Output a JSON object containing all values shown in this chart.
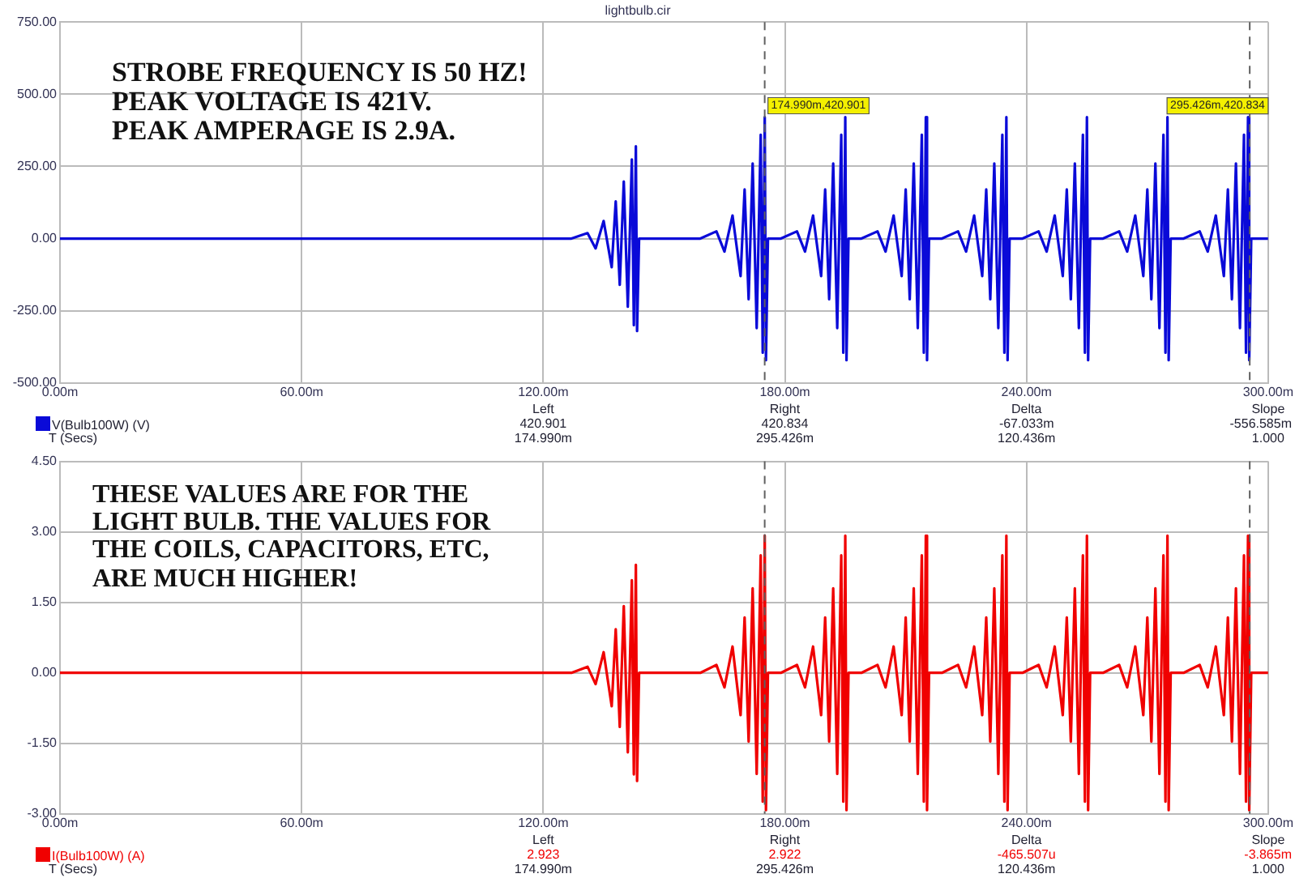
{
  "chart_data": [
    {
      "type": "line",
      "title": "lightbulb.cir",
      "x": [
        0,
        127,
        131,
        133,
        135,
        137,
        138,
        139,
        140,
        141,
        142,
        142.5,
        143,
        143.3,
        143.8,
        159,
        163,
        165,
        167,
        169,
        170,
        171,
        172,
        173,
        174,
        174.5,
        175,
        175.3,
        175.8,
        179,
        183,
        185,
        187,
        189,
        190,
        191,
        192,
        193,
        194,
        194.5,
        195,
        195.3,
        195.8,
        199,
        203,
        205,
        207,
        209,
        210,
        211,
        212,
        213,
        214,
        214.5,
        215,
        215.3,
        215.8,
        219,
        223,
        225,
        227,
        229,
        230,
        231,
        232,
        233,
        234,
        234.5,
        235,
        235.3,
        235.8,
        239,
        243,
        245,
        247,
        249,
        250,
        251,
        252,
        253,
        254,
        254.5,
        255,
        255.3,
        255.8,
        259,
        263,
        265,
        267,
        269,
        270,
        271,
        272,
        273,
        274,
        274.5,
        275,
        275.3,
        275.8,
        279,
        283,
        285,
        287,
        289,
        290,
        291,
        292,
        293,
        294,
        294.5,
        295,
        295.3,
        295.8,
        300
      ],
      "series": [
        {
          "name": "V(Bulb100W) (V)",
          "color": "#0a0ad8",
          "values": [
            0,
            0,
            19,
            -34,
            61,
            -99,
            129,
            -160,
            198,
            -236,
            274,
            -300,
            320,
            -320,
            0,
            0,
            25,
            -45,
            80,
            -130,
            170,
            -210,
            260,
            -310,
            360,
            -395,
            421,
            -421,
            0,
            0,
            25,
            -45,
            80,
            -130,
            170,
            -210,
            260,
            -310,
            360,
            -395,
            421,
            -421,
            0,
            0,
            25,
            -45,
            80,
            -130,
            170,
            -210,
            260,
            -310,
            360,
            -395,
            421,
            -421,
            0,
            0,
            25,
            -45,
            80,
            -130,
            170,
            -210,
            260,
            -310,
            360,
            -395,
            421,
            -421,
            0,
            0,
            25,
            -45,
            80,
            -130,
            170,
            -210,
            260,
            -310,
            360,
            -395,
            421,
            -421,
            0,
            0,
            25,
            -45,
            80,
            -130,
            170,
            -210,
            260,
            -310,
            360,
            -395,
            421,
            -421,
            0,
            0,
            25,
            -45,
            80,
            -130,
            170,
            -210,
            260,
            -310,
            360,
            -395,
            421,
            -421,
            0,
            0
          ]
        }
      ],
      "xlim": [
        0,
        300
      ],
      "xticks": [
        {
          "value": 0,
          "label": "0.00m"
        },
        {
          "value": 60,
          "label": "60.00m"
        },
        {
          "value": 120,
          "label": "120.00m"
        },
        {
          "value": 180,
          "label": "180.00m"
        },
        {
          "value": 240,
          "label": "240.00m"
        },
        {
          "value": 300,
          "label": "300.00m"
        }
      ],
      "ylim": [
        -500,
        750
      ],
      "yticks": [
        {
          "value": -500,
          "label": "-500.00"
        },
        {
          "value": -250,
          "label": "-250.00"
        },
        {
          "value": 0,
          "label": "0.00"
        },
        {
          "value": 250,
          "label": "250.00"
        },
        {
          "value": 500,
          "label": "500.00"
        },
        {
          "value": 750,
          "label": "750.00"
        }
      ],
      "grid": true,
      "legend": "bottom left",
      "marker": "none",
      "line_style": "solid",
      "ref_lines": [
        {
          "axis": "x",
          "value": 174.99,
          "color": "#606060",
          "line_style": "dashed"
        },
        {
          "axis": "x",
          "value": 295.426,
          "color": "#606060",
          "line_style": "dashed"
        }
      ],
      "annotations": [
        "STROBE FREQUENCY IS 50 HZ!\nPEAK VOLTAGE IS 421V.\nPEAK AMPERAGE IS 2.9A.",
        {
          "text": "174.990m,420.901",
          "x": 174.99,
          "y": 420.901
        },
        {
          "text": "295.426m,420.834",
          "x": 295.426,
          "y": 420.834
        },
        "Left",
        "Right",
        "Delta",
        "Slope",
        "420.901",
        "420.834",
        "-67.033m",
        "-556.585m",
        "T (Secs)",
        "174.990m",
        "295.426m",
        "120.436m",
        "1.000"
      ]
    },
    {
      "type": "line",
      "x": [
        0,
        127,
        131,
        133,
        135,
        137,
        138,
        139,
        140,
        141,
        142,
        142.5,
        143,
        143.3,
        143.8,
        159,
        163,
        165,
        167,
        169,
        170,
        171,
        172,
        173,
        174,
        174.5,
        175,
        175.3,
        175.8,
        179,
        183,
        185,
        187,
        189,
        190,
        191,
        192,
        193,
        194,
        194.5,
        195,
        195.3,
        195.8,
        199,
        203,
        205,
        207,
        209,
        210,
        211,
        212,
        213,
        214,
        214.5,
        215,
        215.3,
        215.8,
        219,
        223,
        225,
        227,
        229,
        230,
        231,
        232,
        233,
        234,
        234.5,
        235,
        235.3,
        235.8,
        239,
        243,
        245,
        247,
        249,
        250,
        251,
        252,
        253,
        254,
        254.5,
        255,
        255.3,
        255.8,
        259,
        263,
        265,
        267,
        269,
        270,
        271,
        272,
        273,
        274,
        274.5,
        275,
        275.3,
        275.8,
        279,
        283,
        285,
        287,
        289,
        290,
        291,
        292,
        293,
        294,
        294.5,
        295,
        295.3,
        295.8,
        300
      ],
      "series": [
        {
          "name": "I(Bulb100W) (A)",
          "color": "#f00000",
          "values": [
            0,
            0,
            0.13,
            -0.24,
            0.44,
            -0.71,
            0.93,
            -1.15,
            1.42,
            -1.69,
            1.97,
            -2.16,
            2.3,
            -2.3,
            0,
            0,
            0.17,
            -0.31,
            0.56,
            -0.9,
            1.18,
            -1.46,
            1.8,
            -2.15,
            2.5,
            -2.74,
            2.92,
            -2.92,
            0,
            0,
            0.17,
            -0.31,
            0.56,
            -0.9,
            1.18,
            -1.46,
            1.8,
            -2.15,
            2.5,
            -2.74,
            2.92,
            -2.92,
            0,
            0,
            0.17,
            -0.31,
            0.56,
            -0.9,
            1.18,
            -1.46,
            1.8,
            -2.15,
            2.5,
            -2.74,
            2.92,
            -2.92,
            0,
            0,
            0.17,
            -0.31,
            0.56,
            -0.9,
            1.18,
            -1.46,
            1.8,
            -2.15,
            2.5,
            -2.74,
            2.92,
            -2.92,
            0,
            0,
            0.17,
            -0.31,
            0.56,
            -0.9,
            1.18,
            -1.46,
            1.8,
            -2.15,
            2.5,
            -2.74,
            2.92,
            -2.92,
            0,
            0,
            0.17,
            -0.31,
            0.56,
            -0.9,
            1.18,
            -1.46,
            1.8,
            -2.15,
            2.5,
            -2.74,
            2.92,
            -2.92,
            0,
            0,
            0.17,
            -0.31,
            0.56,
            -0.9,
            1.18,
            -1.46,
            1.8,
            -2.15,
            2.5,
            -2.74,
            2.92,
            -2.92,
            0,
            0
          ]
        }
      ],
      "xlim": [
        0,
        300
      ],
      "xticks": [
        {
          "value": 0,
          "label": "0.00m"
        },
        {
          "value": 60,
          "label": "60.00m"
        },
        {
          "value": 120,
          "label": "120.00m"
        },
        {
          "value": 180,
          "label": "180.00m"
        },
        {
          "value": 240,
          "label": "240.00m"
        },
        {
          "value": 300,
          "label": "300.00m"
        }
      ],
      "ylim": [
        -3,
        4.5
      ],
      "yticks": [
        {
          "value": -3,
          "label": "-3.00"
        },
        {
          "value": -1.5,
          "label": "-1.50"
        },
        {
          "value": 0,
          "label": "0.00"
        },
        {
          "value": 1.5,
          "label": "1.50"
        },
        {
          "value": 3,
          "label": "3.00"
        },
        {
          "value": 4.5,
          "label": "4.50"
        }
      ],
      "grid": true,
      "legend": "bottom left",
      "marker": "none",
      "line_style": "solid",
      "ref_lines": [
        {
          "axis": "x",
          "value": 174.99,
          "color": "#606060",
          "line_style": "dashed"
        },
        {
          "axis": "x",
          "value": 295.426,
          "color": "#606060",
          "line_style": "dashed"
        }
      ],
      "annotations": [
        "THESE VALUES ARE FOR THE\nLIGHT BULB. THE VALUES FOR\nTHE COILS, CAPACITORS, ETC,\nARE MUCH HIGHER!",
        "Left",
        "Right",
        "Delta",
        "Slope",
        "2.923",
        "2.922",
        "-465.507u",
        "-3.865m",
        "T (Secs)",
        "174.990m",
        "295.426m",
        "120.436m",
        "1.000"
      ]
    }
  ]
}
